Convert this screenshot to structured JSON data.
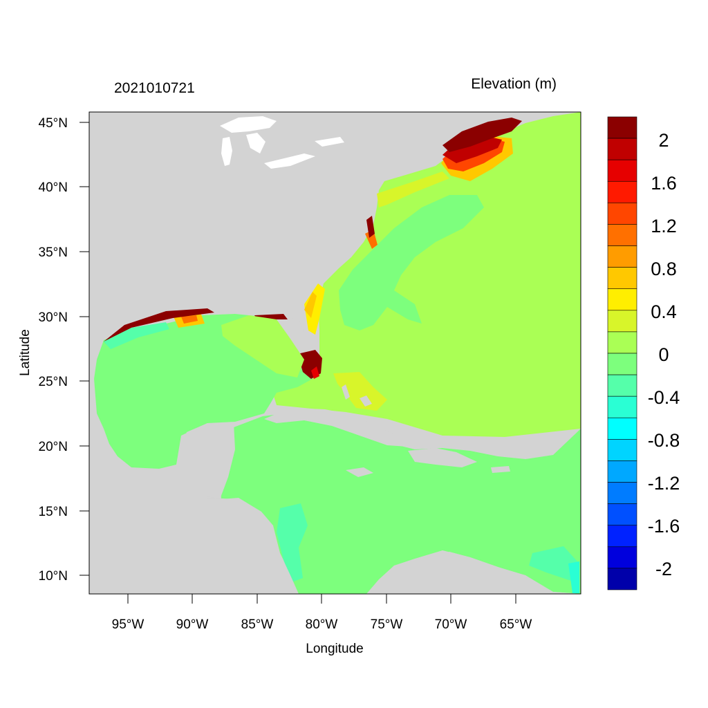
{
  "header": {
    "timestamp": "2021010721",
    "variable": "Elevation (m)"
  },
  "axes": {
    "xlabel": "Longitude",
    "ylabel": "Latitude",
    "x_ticks": [
      "95°W",
      "90°W",
      "85°W",
      "80°W",
      "75°W",
      "70°W",
      "65°W"
    ],
    "y_ticks": [
      "45°N",
      "40°N",
      "35°N",
      "30°N",
      "25°N",
      "20°N",
      "15°N",
      "10°N"
    ]
  },
  "colorbar": {
    "labels": [
      "2",
      "1.6",
      "1.2",
      "0.8",
      "0.4",
      "0",
      "-0.4",
      "-0.8",
      "-1.2",
      "-1.6",
      "-2"
    ],
    "colors": [
      "#8b0000",
      "#c00000",
      "#e60000",
      "#ff1a00",
      "#ff4600",
      "#ff7000",
      "#ff9c00",
      "#ffc800",
      "#ffee00",
      "#d8f52a",
      "#aaff55",
      "#7dff7d",
      "#55ffaa",
      "#2affd4",
      "#00ffff",
      "#00d4ff",
      "#00a8ff",
      "#007cff",
      "#0050ff",
      "#0022ff",
      "#0000dd",
      "#0000aa"
    ]
  },
  "map": {
    "land_color": "#d3d3d3",
    "water_color": "#ffffff",
    "dominant_open_ocean_color": "#aaff55",
    "dominant_gulf_caribbean_color": "#7dff7d"
  }
}
